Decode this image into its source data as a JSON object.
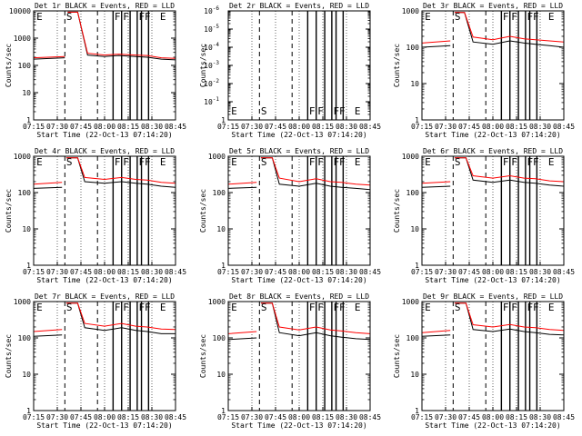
{
  "figure": {
    "xtick_labels": [
      "07:15",
      "07:30",
      "07:45",
      "08:00",
      "08:15",
      "08:30",
      "08:45"
    ],
    "xlabel": "Start Time (22-Oct-13 07:14:20)",
    "ylabel": "Counts/sec"
  },
  "chart_data": [
    {
      "type": "line",
      "title": "Det 1r BLACK = Events, RED = LLD",
      "yscale": "log",
      "ylim": [
        1,
        10000
      ],
      "xlim": [
        0,
        100
      ],
      "ytick_labels": [
        "1",
        "10",
        "100",
        "1000",
        "10000"
      ],
      "series": [
        {
          "name": "Events",
          "color": "#000000",
          "x": [
            0,
            22,
            22.2,
            24,
            31,
            38,
            50,
            60,
            72,
            80,
            90,
            100
          ],
          "y": [
            170,
            190,
            null,
            9000,
            9000,
            240,
            210,
            230,
            210,
            200,
            170,
            160
          ]
        },
        {
          "name": "LLD",
          "color": "#ff0000",
          "x": [
            0,
            22,
            22.2,
            24,
            31,
            38,
            50,
            60,
            72,
            80,
            90,
            100
          ],
          "y": [
            190,
            210,
            null,
            9000,
            9000,
            280,
            240,
            260,
            240,
            230,
            190,
            180
          ]
        }
      ],
      "dashed_lines": [
        22,
        45
      ],
      "solid_lines": [
        56,
        62,
        68,
        73,
        76,
        81
      ],
      "flags": [
        {
          "x": 2,
          "text": "E"
        },
        {
          "x": 23,
          "text": "S"
        },
        {
          "x": 57,
          "text": "F"
        },
        {
          "x": 63,
          "text": "F"
        },
        {
          "x": 74,
          "text": "FF"
        },
        {
          "x": 89,
          "text": "E"
        }
      ]
    },
    {
      "type": "line",
      "title": "Det 2r BLACK = Events, RED = LLD",
      "yscale": "log",
      "ylim": [
        1,
        1e-06
      ],
      "xlim": [
        0,
        100
      ],
      "ytick_labels": [
        "1",
        "10^-1",
        "10^-2",
        "10^-3",
        "10^-4",
        "10^-5",
        "10^-6"
      ],
      "series": [],
      "dashed_lines": [
        22,
        45
      ],
      "solid_lines": [
        56,
        62,
        68,
        73,
        76,
        81
      ],
      "flags": [
        {
          "x": 2,
          "text": "E"
        },
        {
          "x": 23,
          "text": "S"
        },
        {
          "x": 57,
          "text": "F"
        },
        {
          "x": 63,
          "text": "F"
        },
        {
          "x": 74,
          "text": "FF"
        },
        {
          "x": 89,
          "text": "E"
        }
      ]
    },
    {
      "type": "line",
      "title": "Det 3r BLACK = Events, RED = LLD",
      "yscale": "log",
      "ylim": [
        1,
        1000
      ],
      "xlim": [
        0,
        100
      ],
      "ytick_labels": [
        "1",
        "10",
        "100",
        "1000"
      ],
      "series": [
        {
          "name": "Events",
          "color": "#000000",
          "x": [
            0,
            20,
            20.2,
            23,
            30,
            36,
            50,
            62,
            72,
            80,
            90,
            100
          ],
          "y": [
            100,
            110,
            null,
            900,
            900,
            140,
            120,
            150,
            130,
            120,
            110,
            100
          ]
        },
        {
          "name": "LLD",
          "color": "#ff0000",
          "x": [
            0,
            20,
            20.2,
            23,
            30,
            36,
            50,
            62,
            72,
            80,
            90,
            100
          ],
          "y": [
            130,
            150,
            null,
            900,
            900,
            190,
            160,
            200,
            170,
            160,
            150,
            140
          ]
        }
      ],
      "dashed_lines": [
        22,
        45
      ],
      "solid_lines": [
        56,
        62,
        68,
        73,
        76,
        81
      ],
      "flags": [
        {
          "x": 2,
          "text": "E"
        },
        {
          "x": 23,
          "text": "S"
        },
        {
          "x": 57,
          "text": "F"
        },
        {
          "x": 63,
          "text": "F"
        },
        {
          "x": 74,
          "text": "FF"
        },
        {
          "x": 89,
          "text": "E"
        }
      ]
    },
    {
      "type": "line",
      "title": "Det 4r BLACK = Events, RED = LLD",
      "yscale": "log",
      "ylim": [
        1,
        1000
      ],
      "xlim": [
        0,
        100
      ],
      "ytick_labels": [
        "1",
        "10",
        "100",
        "1000"
      ],
      "series": [
        {
          "name": "Events",
          "color": "#000000",
          "x": [
            0,
            20,
            20.2,
            23,
            31,
            36,
            50,
            62,
            72,
            80,
            90,
            100
          ],
          "y": [
            130,
            140,
            null,
            900,
            900,
            200,
            180,
            200,
            180,
            170,
            150,
            140
          ]
        },
        {
          "name": "LLD",
          "color": "#ff0000",
          "x": [
            0,
            20,
            20.2,
            23,
            31,
            36,
            50,
            62,
            72,
            80,
            90,
            100
          ],
          "y": [
            170,
            190,
            null,
            900,
            900,
            260,
            230,
            260,
            230,
            220,
            190,
            180
          ]
        }
      ],
      "dashed_lines": [
        22,
        45
      ],
      "solid_lines": [
        56,
        62,
        68,
        73,
        76,
        81
      ],
      "flags": [
        {
          "x": 2,
          "text": "E"
        },
        {
          "x": 23,
          "text": "S"
        },
        {
          "x": 57,
          "text": "F"
        },
        {
          "x": 63,
          "text": "F"
        },
        {
          "x": 74,
          "text": "FF"
        },
        {
          "x": 89,
          "text": "E"
        }
      ]
    },
    {
      "type": "line",
      "title": "Det 5r BLACK = Events, RED = LLD",
      "yscale": "log",
      "ylim": [
        1,
        1000
      ],
      "xlim": [
        0,
        100
      ],
      "ytick_labels": [
        "1",
        "10",
        "100",
        "1000"
      ],
      "series": [
        {
          "name": "Events",
          "color": "#000000",
          "x": [
            0,
            20,
            20.2,
            23,
            31,
            36,
            50,
            62,
            72,
            80,
            90,
            100
          ],
          "y": [
            130,
            140,
            null,
            900,
            900,
            170,
            150,
            180,
            150,
            140,
            130,
            120
          ]
        },
        {
          "name": "LLD",
          "color": "#ff0000",
          "x": [
            0,
            20,
            20.2,
            23,
            31,
            36,
            50,
            62,
            72,
            80,
            90,
            100
          ],
          "y": [
            170,
            190,
            null,
            900,
            900,
            250,
            200,
            240,
            200,
            190,
            170,
            160
          ]
        }
      ],
      "dashed_lines": [
        22,
        45
      ],
      "solid_lines": [
        56,
        62,
        68,
        73,
        76,
        81
      ],
      "flags": [
        {
          "x": 2,
          "text": "E"
        },
        {
          "x": 23,
          "text": "S"
        },
        {
          "x": 57,
          "text": "F"
        },
        {
          "x": 63,
          "text": "F"
        },
        {
          "x": 74,
          "text": "FF"
        },
        {
          "x": 89,
          "text": "E"
        }
      ]
    },
    {
      "type": "line",
      "title": "Det 6r BLACK = Events, RED = LLD",
      "yscale": "log",
      "ylim": [
        1,
        1000
      ],
      "xlim": [
        0,
        100
      ],
      "ytick_labels": [
        "1",
        "10",
        "100",
        "1000"
      ],
      "series": [
        {
          "name": "Events",
          "color": "#000000",
          "x": [
            0,
            20,
            20.2,
            23,
            31,
            36,
            50,
            62,
            72,
            80,
            90,
            100
          ],
          "y": [
            140,
            150,
            null,
            900,
            900,
            220,
            190,
            220,
            190,
            180,
            160,
            150
          ]
        },
        {
          "name": "LLD",
          "color": "#ff0000",
          "x": [
            0,
            20,
            20.2,
            23,
            31,
            36,
            50,
            62,
            72,
            80,
            90,
            100
          ],
          "y": [
            180,
            200,
            null,
            900,
            900,
            290,
            250,
            290,
            250,
            240,
            210,
            200
          ]
        }
      ],
      "dashed_lines": [
        22,
        45
      ],
      "solid_lines": [
        56,
        62,
        68,
        73,
        76,
        81
      ],
      "flags": [
        {
          "x": 2,
          "text": "E"
        },
        {
          "x": 23,
          "text": "S"
        },
        {
          "x": 57,
          "text": "F"
        },
        {
          "x": 63,
          "text": "F"
        },
        {
          "x": 74,
          "text": "FF"
        },
        {
          "x": 89,
          "text": "E"
        }
      ]
    },
    {
      "type": "line",
      "title": "Det 7r BLACK = Events, RED = LLD",
      "yscale": "log",
      "ylim": [
        1,
        1000
      ],
      "xlim": [
        0,
        100
      ],
      "ytick_labels": [
        "1",
        "10",
        "100",
        "1000"
      ],
      "series": [
        {
          "name": "Events",
          "color": "#000000",
          "x": [
            0,
            20,
            20.2,
            23,
            31,
            36,
            50,
            62,
            72,
            80,
            90,
            100
          ],
          "y": [
            110,
            120,
            null,
            900,
            900,
            190,
            160,
            190,
            160,
            150,
            130,
            130
          ]
        },
        {
          "name": "LLD",
          "color": "#ff0000",
          "x": [
            0,
            20,
            20.2,
            23,
            31,
            36,
            50,
            62,
            72,
            80,
            90,
            100
          ],
          "y": [
            150,
            170,
            null,
            900,
            900,
            250,
            210,
            250,
            210,
            200,
            175,
            170
          ]
        }
      ],
      "dashed_lines": [
        22,
        45
      ],
      "solid_lines": [
        56,
        62,
        68,
        73,
        76,
        81
      ],
      "flags": [
        {
          "x": 2,
          "text": "E"
        },
        {
          "x": 23,
          "text": "S"
        },
        {
          "x": 57,
          "text": "F"
        },
        {
          "x": 63,
          "text": "F"
        },
        {
          "x": 74,
          "text": "FF"
        },
        {
          "x": 89,
          "text": "E"
        }
      ]
    },
    {
      "type": "line",
      "title": "Det 8r BLACK = Events, RED = LLD",
      "yscale": "log",
      "ylim": [
        1,
        1000
      ],
      "xlim": [
        0,
        100
      ],
      "ytick_labels": [
        "1",
        "10",
        "100",
        "1000"
      ],
      "series": [
        {
          "name": "Events",
          "color": "#000000",
          "x": [
            0,
            20,
            20.2,
            23,
            31,
            36,
            50,
            62,
            72,
            80,
            90,
            100
          ],
          "y": [
            90,
            100,
            null,
            900,
            900,
            140,
            115,
            140,
            115,
            105,
            95,
            90
          ]
        },
        {
          "name": "LLD",
          "color": "#ff0000",
          "x": [
            0,
            20,
            20.2,
            23,
            31,
            36,
            50,
            62,
            72,
            80,
            90,
            100
          ],
          "y": [
            130,
            150,
            null,
            900,
            900,
            200,
            165,
            200,
            165,
            155,
            140,
            130
          ]
        }
      ],
      "dashed_lines": [
        22,
        45
      ],
      "solid_lines": [
        56,
        62,
        68,
        73,
        76,
        81
      ],
      "flags": [
        {
          "x": 2,
          "text": "E"
        },
        {
          "x": 23,
          "text": "S"
        },
        {
          "x": 57,
          "text": "F"
        },
        {
          "x": 63,
          "text": "F"
        },
        {
          "x": 74,
          "text": "FF"
        },
        {
          "x": 89,
          "text": "E"
        }
      ]
    },
    {
      "type": "line",
      "title": "Det 9r BLACK = Events, RED = LLD",
      "yscale": "log",
      "ylim": [
        1,
        1000
      ],
      "xlim": [
        0,
        100
      ],
      "ytick_labels": [
        "1",
        "10",
        "100",
        "1000"
      ],
      "series": [
        {
          "name": "Events",
          "color": "#000000",
          "x": [
            0,
            20,
            20.2,
            23,
            31,
            36,
            50,
            62,
            72,
            80,
            90,
            100
          ],
          "y": [
            110,
            120,
            null,
            900,
            900,
            170,
            150,
            175,
            150,
            140,
            125,
            120
          ]
        },
        {
          "name": "LLD",
          "color": "#ff0000",
          "x": [
            0,
            20,
            20.2,
            23,
            31,
            36,
            50,
            62,
            72,
            80,
            90,
            100
          ],
          "y": [
            140,
            160,
            null,
            900,
            900,
            230,
            200,
            235,
            200,
            190,
            170,
            160
          ]
        }
      ],
      "dashed_lines": [
        22,
        45
      ],
      "solid_lines": [
        56,
        62,
        68,
        73,
        76,
        81
      ],
      "flags": [
        {
          "x": 2,
          "text": "E"
        },
        {
          "x": 23,
          "text": "S"
        },
        {
          "x": 57,
          "text": "F"
        },
        {
          "x": 63,
          "text": "F"
        },
        {
          "x": 74,
          "text": "FF"
        },
        {
          "x": 89,
          "text": "E"
        }
      ]
    }
  ]
}
